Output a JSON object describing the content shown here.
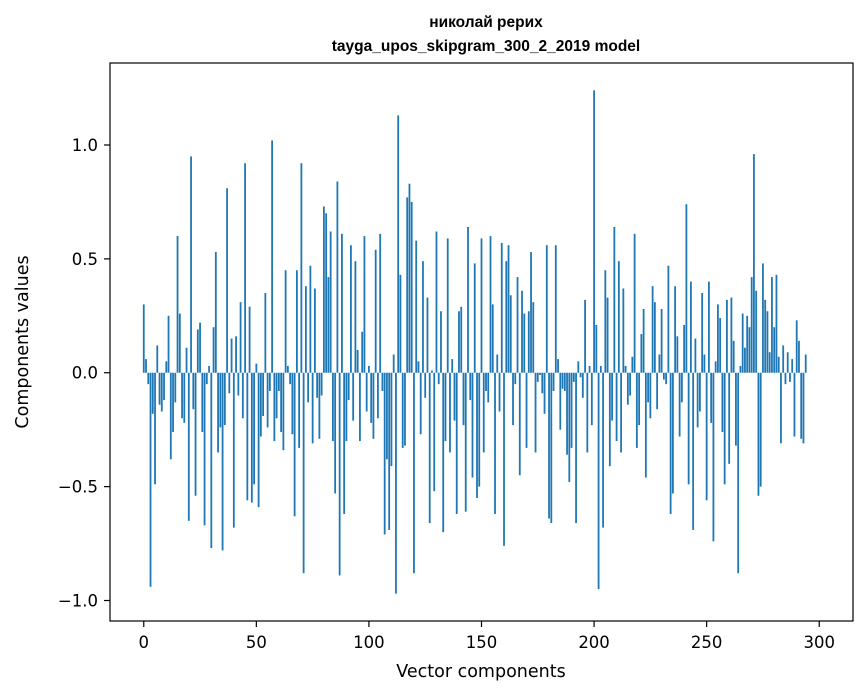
{
  "chart_data": {
    "type": "bar",
    "title": "николай рерих",
    "subtitle": "tayga_upos_skipgram_300_2_2019 model",
    "xlabel": "Vector components",
    "ylabel": "Components values",
    "xlim": [
      -15,
      315
    ],
    "ylim": [
      -1.09,
      1.36
    ],
    "xticks": [
      0,
      50,
      100,
      150,
      200,
      250,
      300
    ],
    "xtick_labels": [
      "0",
      "50",
      "100",
      "150",
      "200",
      "250",
      "300"
    ],
    "yticks": [
      -1.0,
      -0.5,
      0.0,
      0.5,
      1.0
    ],
    "ytick_labels": [
      "−1.0",
      "−0.5",
      "0.0",
      "0.5",
      "1.0"
    ],
    "grid": false,
    "bar_color": "#1f77b4",
    "values": [
      0.3,
      0.06,
      -0.05,
      -0.94,
      -0.18,
      -0.49,
      0.12,
      -0.14,
      -0.17,
      -0.12,
      0.05,
      0.25,
      -0.38,
      -0.26,
      -0.13,
      0.6,
      0.26,
      -0.2,
      -0.22,
      0.11,
      -0.65,
      0.95,
      -0.16,
      -0.54,
      0.19,
      0.22,
      -0.26,
      -0.67,
      -0.05,
      0.03,
      -0.77,
      0.2,
      0.53,
      -0.35,
      -0.24,
      -0.78,
      -0.23,
      0.81,
      -0.09,
      0.15,
      -0.68,
      0.16,
      -0.1,
      0.31,
      -0.2,
      0.92,
      -0.56,
      0.29,
      -0.57,
      -0.49,
      0.04,
      -0.59,
      -0.28,
      -0.19,
      0.35,
      -0.24,
      -0.08,
      1.02,
      -0.3,
      -0.2,
      -0.08,
      -0.26,
      -0.34,
      0.45,
      0.03,
      -0.05,
      -0.27,
      -0.63,
      0.45,
      -0.33,
      0.92,
      -0.88,
      0.38,
      -0.13,
      0.47,
      -0.31,
      0.37,
      -0.11,
      -0.29,
      -0.1,
      0.73,
      0.7,
      0.42,
      0.62,
      -0.3,
      -0.53,
      0.84,
      -0.89,
      0.61,
      -0.62,
      -0.3,
      -0.12,
      0.56,
      -0.21,
      0.49,
      0.1,
      -0.3,
      0.18,
      0.6,
      -0.17,
      0.03,
      -0.22,
      -0.29,
      0.54,
      -0.2,
      0.61,
      -0.08,
      -0.71,
      -0.38,
      -0.69,
      -0.41,
      0.08,
      -0.97,
      1.13,
      0.43,
      -0.33,
      -0.32,
      0.77,
      0.83,
      0.75,
      -0.88,
      0.58,
      0.05,
      -0.27,
      0.49,
      -0.11,
      0.33,
      -0.66,
      0.01,
      -0.52,
      0.62,
      -0.05,
      0.27,
      -0.7,
      -0.3,
      0.59,
      -0.35,
      0.06,
      -0.21,
      -0.62,
      0.27,
      0.29,
      -0.23,
      -0.61,
      0.64,
      -0.12,
      -0.46,
      0.48,
      -0.55,
      -0.5,
      0.59,
      -0.35,
      -0.08,
      -0.13,
      0.6,
      0.3,
      -0.62,
      0.08,
      -0.17,
      0.57,
      -0.76,
      0.49,
      0.56,
      0.34,
      -0.23,
      -0.05,
      0.42,
      -0.45,
      0.36,
      0.26,
      -0.33,
      0.27,
      0.53,
      0.31,
      -0.35,
      -0.04,
      -0.01,
      -0.09,
      -0.18,
      0.56,
      -0.64,
      -0.66,
      -0.08,
      0.56,
      0.06,
      -0.25,
      -0.07,
      -0.08,
      -0.36,
      -0.48,
      -0.33,
      -0.04,
      -0.66,
      0.05,
      -0.02,
      -0.11,
      0.32,
      -0.35,
      0.03,
      -0.23,
      1.24,
      0.21,
      -0.95,
      0.03,
      -0.68,
      0.45,
      0.33,
      -0.41,
      -0.21,
      0.64,
      -0.3,
      0.49,
      -0.35,
      0.37,
      0.03,
      -0.14,
      -0.1,
      0.07,
      0.61,
      -0.33,
      -0.23,
      0.17,
      0.28,
      -0.46,
      -0.13,
      -0.2,
      0.38,
      0.31,
      -0.16,
      0.08,
      0.28,
      -0.03,
      -0.05,
      0.47,
      -0.62,
      -0.53,
      0.38,
      0.16,
      -0.28,
      -0.13,
      0.21,
      0.74,
      -0.49,
      0.4,
      -0.69,
      0.15,
      -0.24,
      -0.17,
      0.35,
      0.08,
      -0.56,
      0.4,
      -0.22,
      -0.74,
      0.05,
      0.3,
      0.24,
      -0.26,
      -0.49,
      0.32,
      -0.4,
      0.33,
      0.14,
      -0.32,
      -0.88,
      0.03,
      0.26,
      0.11,
      0.25,
      0.2,
      0.42,
      0.96,
      0.36,
      -0.54,
      -0.5,
      0.48,
      0.32,
      0.27,
      0.09,
      0.42,
      0.2,
      0.43,
      0.07,
      -0.31,
      0.12,
      -0.05,
      0.09,
      -0.04,
      0.06,
      -0.28,
      0.23,
      0.14,
      -0.29,
      -0.31,
      0.08
    ]
  }
}
